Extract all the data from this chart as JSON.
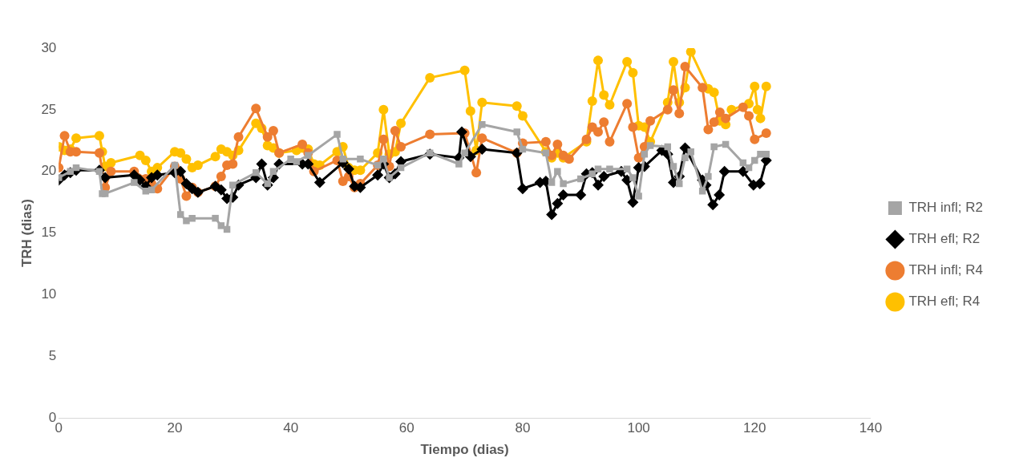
{
  "chart_data": {
    "type": "line",
    "xlabel": "Tiempo (dias)",
    "ylabel": "TRH (dias)",
    "xlim": [
      0,
      140
    ],
    "xticks": [
      0,
      20,
      40,
      60,
      80,
      100,
      120,
      140
    ],
    "ylim": [
      0,
      30
    ],
    "yticks": [
      0,
      5,
      10,
      15,
      20,
      25,
      30
    ],
    "grid": false,
    "legend": "right",
    "line_style": "solid",
    "series": [
      {
        "name": "TRH infl; R2",
        "color": "#a5a5a5",
        "marker": "square",
        "x": [
          0,
          2,
          3,
          7,
          7.5,
          8,
          13,
          15,
          16,
          20,
          21,
          22,
          23,
          27,
          28,
          29,
          30,
          34,
          36,
          37,
          40,
          41,
          43,
          48,
          49,
          52,
          55,
          56,
          57,
          59,
          64,
          69,
          70,
          73,
          79,
          80,
          84,
          85,
          86,
          87,
          90,
          92,
          93,
          95,
          98,
          99,
          100,
          101,
          102,
          105,
          106,
          107,
          108,
          109,
          111,
          112,
          113,
          115,
          118,
          119,
          120,
          121,
          122
        ],
        "values": [
          19.5,
          20,
          20.3,
          20,
          18.2,
          18.2,
          19.1,
          18.4,
          18.5,
          20.5,
          16.5,
          16,
          16.2,
          16.2,
          15.6,
          15.3,
          18.9,
          19.9,
          19,
          20,
          21,
          20.8,
          21.3,
          23,
          21,
          21,
          20.5,
          21,
          19.5,
          20.3,
          21.5,
          20.6,
          21.5,
          23.8,
          23.2,
          21.8,
          21.5,
          19.1,
          20,
          19,
          19.4,
          19.8,
          20.2,
          20.2,
          20.2,
          19.5,
          18,
          21.4,
          22.1,
          22,
          20.4,
          19,
          21.1,
          21.6,
          18.4,
          19.6,
          22,
          22.2,
          20.7,
          20.3,
          20.9,
          21.4,
          21.4
        ]
      },
      {
        "name": "TRH efl; R2",
        "color": "#000000",
        "marker": "diamond",
        "x": [
          0,
          1,
          2,
          3,
          7,
          8,
          13,
          14,
          15,
          16,
          17,
          20,
          21,
          22,
          23,
          24,
          27,
          28,
          29,
          30,
          31,
          34,
          35,
          36,
          37,
          38,
          42,
          43,
          45,
          49,
          50,
          51,
          52,
          55,
          56,
          57,
          58,
          59,
          64,
          69,
          69.5,
          71,
          73,
          79,
          80,
          83,
          84,
          85,
          86,
          87,
          90,
          91,
          92,
          93,
          94,
          97,
          98,
          99,
          100,
          101,
          104,
          105,
          106,
          107,
          108,
          111,
          111.6,
          112.8,
          113.9,
          114.8,
          118,
          119.8,
          120.9,
          122
        ],
        "values": [
          19.3,
          19.7,
          19.9,
          20.1,
          20.1,
          19.5,
          19.7,
          19.3,
          18.8,
          19.5,
          19.7,
          19.9,
          20,
          19,
          18.6,
          18.3,
          18.8,
          18.5,
          17.8,
          17.9,
          18.9,
          19.5,
          20.6,
          18.9,
          19.5,
          20.6,
          20.6,
          20.6,
          19.1,
          20.7,
          20.2,
          18.8,
          18.7,
          19.7,
          20.6,
          19.5,
          19.8,
          20.8,
          21.4,
          21.1,
          23.2,
          21.2,
          21.8,
          21.5,
          18.6,
          19.1,
          19.2,
          16.5,
          17.4,
          18.1,
          18.1,
          19.8,
          19.9,
          18.9,
          19.6,
          20,
          19.3,
          17.5,
          20.3,
          20.4,
          21.7,
          21.4,
          19.1,
          19.6,
          21.9,
          19.3,
          18.9,
          17.3,
          18.1,
          20,
          20,
          18.9,
          19,
          20.9
        ]
      },
      {
        "name": "TRH infl; R4",
        "color": "#ed7d31",
        "marker": "circle",
        "x": [
          0,
          1,
          2,
          3,
          7,
          8,
          9,
          13,
          15,
          16,
          17,
          20,
          21,
          22,
          23,
          24,
          27,
          28,
          29,
          30,
          31,
          34,
          36,
          37,
          38,
          42,
          43,
          44,
          48,
          49,
          50,
          51,
          52,
          55,
          56,
          57,
          58,
          59,
          64,
          70,
          72,
          73,
          79,
          80,
          84,
          85,
          86,
          87,
          88,
          91,
          92,
          93,
          94,
          95,
          98,
          99,
          100,
          101,
          102,
          105,
          106,
          107,
          108,
          111,
          112,
          113,
          114,
          115,
          118,
          119,
          120,
          122
        ],
        "values": [
          20.3,
          22.9,
          21.6,
          21.6,
          21.5,
          18.7,
          20,
          20,
          19.4,
          19,
          18.6,
          20.4,
          19.4,
          18,
          18.7,
          18.3,
          18.8,
          19.6,
          20.5,
          20.6,
          22.8,
          25.1,
          22.8,
          23.3,
          21.5,
          22.2,
          21.5,
          20,
          20.9,
          19.2,
          19.6,
          18.7,
          19,
          20.5,
          22.6,
          20.4,
          23.3,
          22,
          23,
          23.1,
          19.9,
          22.7,
          21.5,
          22.3,
          22.4,
          21.3,
          22.2,
          21.3,
          21,
          22.6,
          23.6,
          23.2,
          24,
          22.4,
          25.5,
          23.6,
          21.1,
          22,
          24.1,
          25,
          26.6,
          24.7,
          28.5,
          26.8,
          23.4,
          24,
          24.8,
          24.3,
          25.2,
          24.5,
          22.6,
          23.1
        ]
      },
      {
        "name": "TRH efl; R4",
        "color": "#ffc000",
        "marker": "circle",
        "x": [
          0,
          1,
          2,
          3,
          7,
          7.5,
          8,
          9,
          14,
          15,
          16,
          17,
          20,
          21,
          22,
          23,
          24,
          27,
          28,
          29,
          30,
          31,
          34,
          35,
          36,
          37,
          38,
          41,
          42,
          43,
          44,
          45,
          48,
          49,
          50,
          51,
          52,
          55,
          56,
          57,
          58,
          59,
          64,
          70,
          71,
          72,
          73,
          79,
          80,
          84,
          85,
          86,
          87,
          91,
          92,
          93,
          94,
          95,
          98,
          99,
          100,
          101,
          102,
          105,
          106,
          107,
          108,
          109,
          112,
          113,
          114,
          115,
          116,
          119,
          120,
          120.5,
          121,
          122
        ],
        "values": [
          22,
          21.7,
          21.8,
          22.7,
          22.9,
          21.6,
          20.4,
          20.7,
          21.3,
          20.9,
          20,
          20.3,
          21.6,
          21.5,
          21,
          20.3,
          20.5,
          21.2,
          21.8,
          21.6,
          21.3,
          21.7,
          23.9,
          23.5,
          22.1,
          21.9,
          21.5,
          21.7,
          21.9,
          21.8,
          20.6,
          20.5,
          21.6,
          22,
          20.3,
          20.1,
          20.1,
          21.5,
          25,
          21.4,
          21.6,
          23.9,
          27.6,
          28.2,
          24.9,
          21.7,
          25.6,
          25.3,
          24.5,
          21.6,
          21.1,
          21.5,
          21.1,
          22.4,
          25.7,
          29,
          26.2,
          25.4,
          28.9,
          28,
          23.7,
          23.6,
          22.4,
          25.6,
          28.9,
          25.6,
          26.8,
          29.7,
          26.7,
          26.4,
          24.1,
          23.8,
          25,
          25.5,
          26.9,
          25,
          24.3,
          26.9
        ]
      }
    ]
  }
}
